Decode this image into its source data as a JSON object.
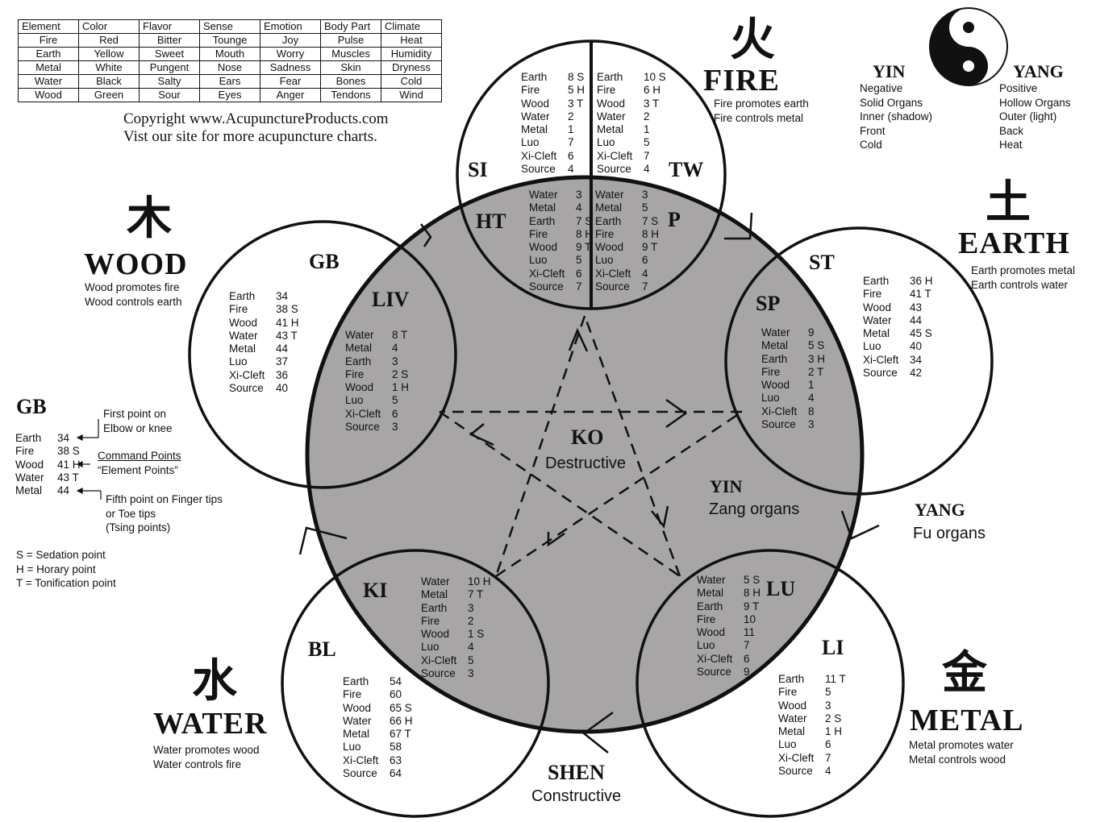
{
  "legend_table": {
    "headers": [
      "Element",
      "Color",
      "Flavor",
      "Sense",
      "Emotion",
      "Body Part",
      "Climate"
    ],
    "rows": [
      [
        "Fire",
        "Red",
        "Bitter",
        "Tounge",
        "Joy",
        "Pulse",
        "Heat"
      ],
      [
        "Earth",
        "Yellow",
        "Sweet",
        "Mouth",
        "Worry",
        "Muscles",
        "Humidity"
      ],
      [
        "Metal",
        "White",
        "Pungent",
        "Nose",
        "Sadness",
        "Skin",
        "Dryness"
      ],
      [
        "Water",
        "Black",
        "Salty",
        "Ears",
        "Fear",
        "Bones",
        "Cold"
      ],
      [
        "Wood",
        "Green",
        "Sour",
        "Eyes",
        "Anger",
        "Tendons",
        "Wind"
      ]
    ]
  },
  "copyright": {
    "line1": "Copyright www.AcupunctureProducts.com",
    "line2": "Vist our site for more acupuncture charts."
  },
  "elements": {
    "fire": {
      "glyph": "火",
      "name": "FIRE",
      "line1": "Fire promotes earth",
      "line2": "Fire controls metal"
    },
    "earth": {
      "glyph": "土",
      "name": "EARTH",
      "line1": "Earth promotes metal",
      "line2": "Earth controls water"
    },
    "wood": {
      "glyph": "木",
      "name": "WOOD",
      "line1": "Wood promotes fire",
      "line2": "Wood controls earth"
    },
    "water": {
      "glyph": "水",
      "name": "WATER",
      "line1": "Water promotes wood",
      "line2": "Water controls fire"
    },
    "metal": {
      "glyph": "金",
      "name": "METAL",
      "line1": "Metal promotes water",
      "line2": "Metal controls wood"
    }
  },
  "yinyang": {
    "yin_title": "YIN",
    "yang_title": "YANG",
    "yin_items": [
      "Negative",
      "Solid Organs",
      "Inner (shadow)",
      "Front",
      "Cold"
    ],
    "yang_items": [
      "Positive",
      "Hollow  Organs",
      "Outer (light)",
      "Back",
      "Heat"
    ]
  },
  "organs": {
    "SI": {
      "name": "SI",
      "points": [
        [
          "Earth",
          "8 S"
        ],
        [
          "Fire",
          "5 H"
        ],
        [
          "Wood",
          "3 T"
        ],
        [
          "Water",
          "2"
        ],
        [
          "Metal",
          "1"
        ],
        [
          "Luo",
          "7"
        ],
        [
          "Xi-Cleft",
          "6"
        ],
        [
          "Source",
          "4"
        ]
      ]
    },
    "TW": {
      "name": "TW",
      "points": [
        [
          "Earth",
          "10 S"
        ],
        [
          "Fire",
          "6  H"
        ],
        [
          "Wood",
          "3  T"
        ],
        [
          "Water",
          "2"
        ],
        [
          "Metal",
          "1"
        ],
        [
          "Luo",
          "5"
        ],
        [
          "Xi-Cleft",
          "7"
        ],
        [
          "Source",
          "4"
        ]
      ]
    },
    "HT": {
      "name": "HT",
      "points": [
        [
          "Water",
          "3"
        ],
        [
          "Metal",
          "4"
        ],
        [
          "Earth",
          "7 S"
        ],
        [
          "Fire",
          "8 H"
        ],
        [
          "Wood",
          "9 T"
        ],
        [
          "Luo",
          "5"
        ],
        [
          "Xi-Cleft",
          "6"
        ],
        [
          "Source",
          "7"
        ]
      ]
    },
    "P": {
      "name": "P",
      "points": [
        [
          "Water",
          "3"
        ],
        [
          "Metal",
          "5"
        ],
        [
          "Earth",
          "7 S"
        ],
        [
          "Fire",
          "8 H"
        ],
        [
          "Wood",
          "9 T"
        ],
        [
          "Luo",
          "6"
        ],
        [
          "Xi-Cleft",
          "4"
        ],
        [
          "Source",
          "7"
        ]
      ]
    },
    "GB": {
      "name": "GB",
      "points": [
        [
          "Earth",
          "34"
        ],
        [
          "Fire",
          "38  S"
        ],
        [
          "Wood",
          "41  H"
        ],
        [
          "Water",
          "43  T"
        ],
        [
          "Metal",
          "44"
        ],
        [
          "Luo",
          "37"
        ],
        [
          "Xi-Cleft",
          "36"
        ],
        [
          "Source",
          "40"
        ]
      ]
    },
    "LIV": {
      "name": "LIV",
      "points": [
        [
          "Water",
          "8 T"
        ],
        [
          "Metal",
          "4"
        ],
        [
          "Earth",
          "3"
        ],
        [
          "Fire",
          "2 S"
        ],
        [
          "Wood",
          "1 H"
        ],
        [
          "Luo",
          "5"
        ],
        [
          "Xi-Cleft",
          "6"
        ],
        [
          "Source",
          "3"
        ]
      ]
    },
    "ST": {
      "name": "ST",
      "points": [
        [
          "Earth",
          "36 H"
        ],
        [
          "Fire",
          "41 T"
        ],
        [
          "Wood",
          "43"
        ],
        [
          "Water",
          "44"
        ],
        [
          "Metal",
          "45 S"
        ],
        [
          "Luo",
          "40"
        ],
        [
          "Xi-Cleft",
          "34"
        ],
        [
          "Source",
          "42"
        ]
      ]
    },
    "SP": {
      "name": "SP",
      "points": [
        [
          "Water",
          "9"
        ],
        [
          "Metal",
          "5 S"
        ],
        [
          "Earth",
          "3 H"
        ],
        [
          "Fire",
          "2 T"
        ],
        [
          "Wood",
          "1"
        ],
        [
          "Luo",
          "4"
        ],
        [
          "Xi-Cleft",
          "8"
        ],
        [
          "Source",
          "3"
        ]
      ]
    },
    "KI": {
      "name": "KI",
      "points": [
        [
          "Water",
          "10 H"
        ],
        [
          "Metal",
          "7 T"
        ],
        [
          "Earth",
          "3"
        ],
        [
          "Fire",
          "2"
        ],
        [
          "Wood",
          "1 S"
        ],
        [
          "Luo",
          "4"
        ],
        [
          "Xi-Cleft",
          "5"
        ],
        [
          "Source",
          "3"
        ]
      ]
    },
    "BL": {
      "name": "BL",
      "points": [
        [
          "Earth",
          "54"
        ],
        [
          "Fire",
          "60"
        ],
        [
          "Wood",
          "65 S"
        ],
        [
          "Water",
          "66 H"
        ],
        [
          "Metal",
          "67 T"
        ],
        [
          "Luo",
          "58"
        ],
        [
          "Xi-Cleft",
          "63"
        ],
        [
          "Source",
          "64"
        ]
      ]
    },
    "LU": {
      "name": "LU",
      "points": [
        [
          "Water",
          "5 S"
        ],
        [
          "Metal",
          "8 H"
        ],
        [
          "Earth",
          "9 T"
        ],
        [
          "Fire",
          "10"
        ],
        [
          "Wood",
          "11"
        ],
        [
          "Luo",
          "7"
        ],
        [
          "Xi-Cleft",
          "6"
        ],
        [
          "Source",
          "9"
        ]
      ]
    },
    "LI": {
      "name": "LI",
      "points": [
        [
          "Earth",
          "11 T"
        ],
        [
          "Fire",
          "5"
        ],
        [
          "Wood",
          "3"
        ],
        [
          "Water",
          "2 S"
        ],
        [
          "Metal",
          "1 H"
        ],
        [
          "Luo",
          "6"
        ],
        [
          "Xi-Cleft",
          "7"
        ],
        [
          "Source",
          "4"
        ]
      ]
    }
  },
  "center": {
    "ko": "KO",
    "ko_sub": "Destructive",
    "yin": "YIN",
    "yin_sub": "Zang organs",
    "yang": "YANG",
    "yang_sub": "Fu organs",
    "shen": "SHEN",
    "shen_sub": "Constructive"
  },
  "gb_example": {
    "title": "GB",
    "points": [
      [
        "Earth",
        "34"
      ],
      [
        "Fire",
        "38  S"
      ],
      [
        "Wood",
        "41  H"
      ],
      [
        "Water",
        "43  T"
      ],
      [
        "Metal",
        "44"
      ]
    ],
    "note1a": "First point on",
    "note1b": "Elbow or knee",
    "note2a": "Command Points",
    "note2b": "“Element Points”",
    "note3a": "Fifth point on Finger tips",
    "note3b": "or Toe tips",
    "note3c": "(Tsing points)"
  },
  "key": [
    "S = Sedation point",
    "H = Horary point",
    "T = Tonification point"
  ]
}
